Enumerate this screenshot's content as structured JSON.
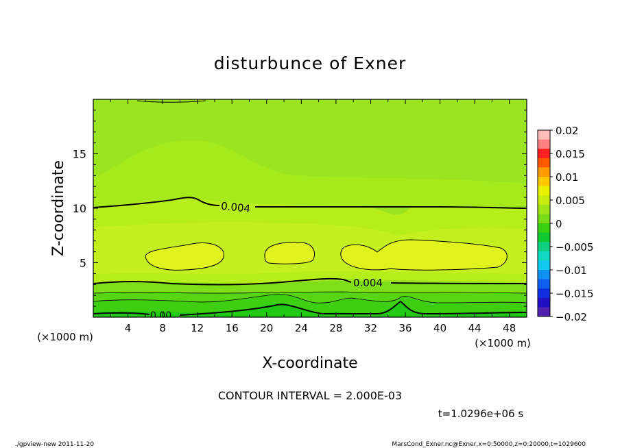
{
  "chart_data": {
    "type": "heatmap",
    "title": "disturbunce of Exner",
    "xlabel": "X-coordinate",
    "ylabel": "Z-coordinate",
    "x_unit_label": "(×1000 m)",
    "z_unit_label": "(×1000 m)",
    "xlim": [
      0,
      50
    ],
    "ylim": [
      0,
      20
    ],
    "x_ticks": [
      4,
      8,
      12,
      16,
      20,
      24,
      28,
      32,
      36,
      40,
      44,
      48
    ],
    "y_ticks": [
      5,
      10,
      15
    ],
    "colorbar": {
      "min": -0.02,
      "max": 0.02,
      "tick_values": [
        0.02,
        0.015,
        0.01,
        0.005,
        0,
        -0.005,
        -0.01,
        -0.015,
        -0.02
      ],
      "tick_labels": [
        "0.02",
        "0.015",
        "0.01",
        "0.005",
        "0",
        "−0.005",
        "−0.01",
        "−0.015",
        "−0.02"
      ]
    },
    "contour_labels": [
      "0.004",
      "0.004",
      "0.00"
    ],
    "contour_interval_text": "CONTOUR INTERVAL = 2.000E-03",
    "time_text": "t=1.0296e+06 s"
  },
  "footer": {
    "left": "./gpview-new 2011-11-20",
    "right": "MarsCond_Exner.nc@Exner,x=0:50000,z=0:20000,t=1029600"
  },
  "colors": {
    "bg_green": "#88e020",
    "upper_green": "#a0e818",
    "mid_yellow_green": "#c0ec20",
    "core_yellow": "#e0f020",
    "lower_green_1": "#70d818",
    "lower_green_2": "#40d010",
    "bottom_green": "#20c818"
  }
}
